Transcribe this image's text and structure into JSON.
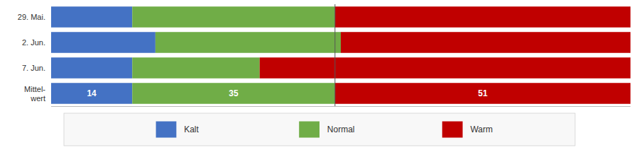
{
  "chart_data": {
    "type": "bar",
    "orientation": "horizontal",
    "stacked": true,
    "categories": [
      "29. Mai.",
      "2. Jun.",
      "7. Jun.",
      "Mittel-\nwert"
    ],
    "series": [
      {
        "name": "Kalt",
        "color": "#4472c4",
        "values": [
          14,
          18,
          14,
          14
        ],
        "value_labels": [
          null,
          null,
          null,
          "14"
        ]
      },
      {
        "name": "Normal",
        "color": "#70ad47",
        "values": [
          35,
          32,
          22,
          35
        ],
        "value_labels": [
          null,
          null,
          null,
          "35"
        ]
      },
      {
        "name": "Warm",
        "color": "#c00000",
        "values": [
          51,
          50,
          64,
          51
        ],
        "value_labels": [
          null,
          null,
          null,
          "51"
        ]
      }
    ],
    "xlim": [
      0,
      100
    ],
    "xticks": [],
    "tick_labels": "y",
    "data_labels": true,
    "grid": false,
    "legend": "bottom",
    "reference_line": {
      "x": 49
    }
  }
}
